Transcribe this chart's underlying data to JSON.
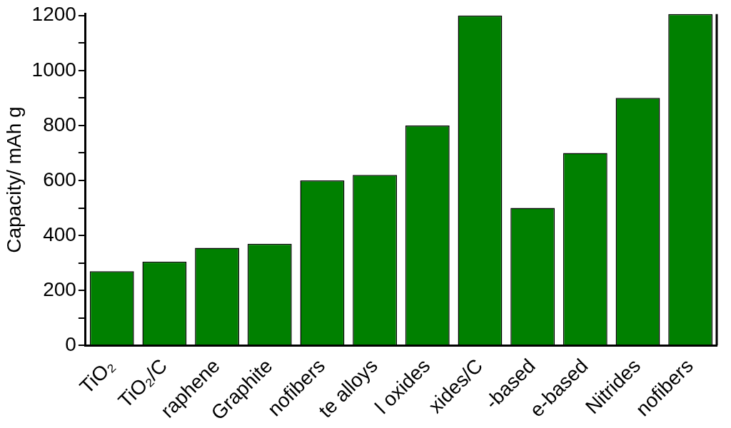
{
  "chart_data": {
    "type": "bar",
    "ylabel": "Capacity/ mAh g",
    "categories": [
      "TiO₂",
      "TiO₂/C",
      "raphene",
      "Graphite",
      "nofibers",
      "te alloys",
      "l oxides",
      "xides/C",
      "-based",
      "e-based",
      "Nitrides",
      "nofibers"
    ],
    "values": [
      270,
      305,
      355,
      370,
      600,
      620,
      800,
      1200,
      500,
      700,
      900,
      1205
    ],
    "color": "#008000",
    "ylim": [
      0,
      1205
    ],
    "yticks": [
      0,
      {
        "value": 100,
        "label": null
      },
      200,
      {
        "value": 300,
        "label": null
      },
      400,
      {
        "value": 500,
        "label": null
      },
      600,
      {
        "value": 700,
        "label": null
      },
      800,
      {
        "value": 900,
        "label": null
      },
      1000,
      {
        "value": 1100,
        "label": null
      },
      1200
    ],
    "grid": false,
    "legend": false
  }
}
